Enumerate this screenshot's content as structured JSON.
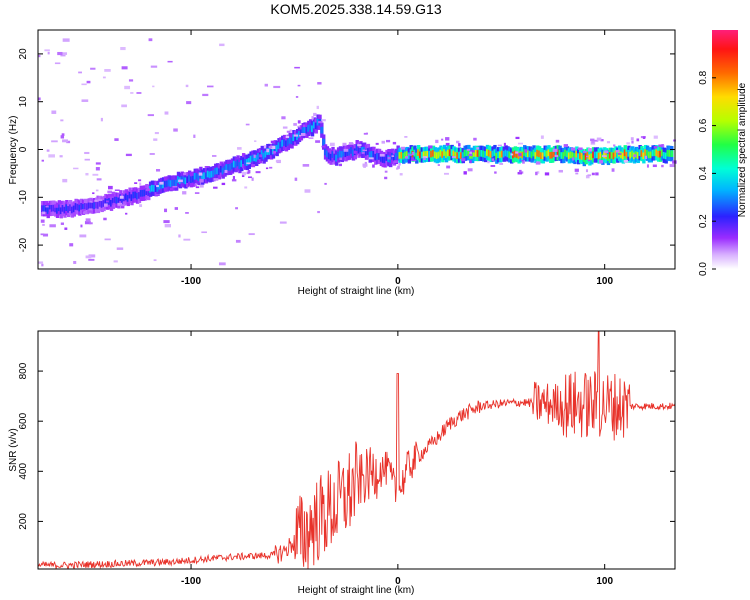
{
  "title": "KOM5.2025.338.14.59.G13",
  "chart_data": [
    {
      "type": "heatmap",
      "xlabel": "Height of straight line (km)",
      "ylabel": "Frequency (Hz)",
      "xlim": [
        -174,
        134
      ],
      "ylim": [
        -25,
        25
      ],
      "x_ticks": [
        -100,
        0,
        100
      ],
      "y_ticks": [
        -20,
        -10,
        0,
        10,
        20
      ],
      "ridge": {
        "x": [
          -170,
          -160,
          -150,
          -140,
          -130,
          -120,
          -110,
          -100,
          -90,
          -80,
          -70,
          -60,
          -50,
          -45,
          -40,
          -38,
          -35,
          -30,
          -25,
          -20,
          -15,
          -10,
          -5,
          0,
          10,
          20,
          30,
          40,
          50,
          60,
          70,
          80,
          90,
          100,
          110,
          120,
          130
        ],
        "y": [
          -12.5,
          -12.5,
          -12,
          -11,
          -10,
          -8.5,
          -7,
          -6,
          -5,
          -3.5,
          -2,
          0,
          2.5,
          4,
          5,
          6,
          -1,
          -1.5,
          -1,
          0,
          -0.5,
          -1.5,
          -2,
          -1,
          -1,
          -1,
          -1,
          -1,
          -1,
          -1,
          -1,
          -1,
          -1.5,
          -1.5,
          -1,
          -1,
          -1
        ]
      },
      "colorbar": {
        "label": "Normalized spectral amplitude",
        "ticks": [
          "0.0",
          "0.2",
          "0.4",
          "0.6",
          "0.8"
        ],
        "range": [
          0,
          1
        ]
      }
    },
    {
      "type": "line",
      "xlabel": "Height of straight line (km)",
      "ylabel": "SNR (v/v)",
      "xlim": [
        -174,
        134
      ],
      "ylim": [
        10,
        960
      ],
      "x_ticks": [
        -100,
        0,
        100
      ],
      "y_ticks": [
        200,
        400,
        600,
        800
      ],
      "color": "#e8322a",
      "series": [
        {
          "x": [
            -174,
            -160,
            -150,
            -140,
            -130,
            -120,
            -110,
            -100,
            -90,
            -80,
            -70,
            -60,
            -55,
            -50,
            -45,
            -40,
            -35,
            -30,
            -25,
            -20,
            -15,
            -10,
            -5,
            0,
            5,
            10,
            15,
            20,
            25,
            30,
            35,
            40,
            50,
            60,
            70,
            80,
            90,
            100,
            110,
            120,
            134
          ],
          "y": [
            25,
            25,
            28,
            30,
            32,
            35,
            38,
            45,
            52,
            58,
            62,
            65,
            80,
            120,
            150,
            200,
            230,
            260,
            300,
            350,
            380,
            400,
            410,
            300,
            420,
            460,
            500,
            540,
            590,
            620,
            640,
            660,
            670,
            675,
            670,
            665,
            665,
            665,
            660,
            660,
            660
          ]
        }
      ]
    }
  ]
}
